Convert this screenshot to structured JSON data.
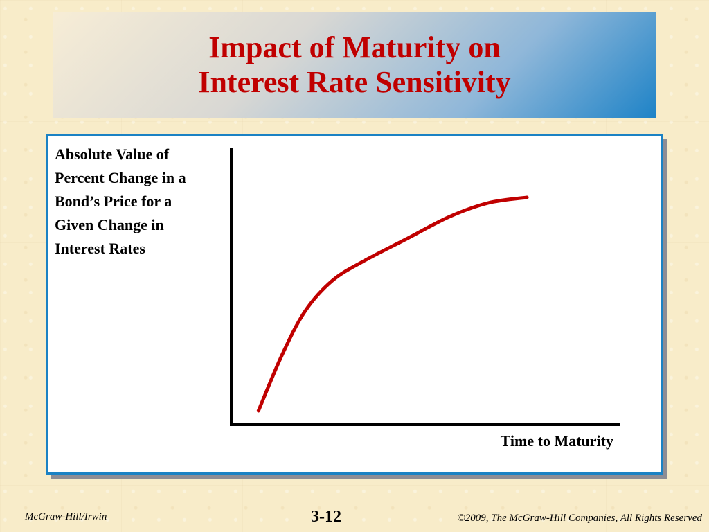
{
  "slide": {
    "title_line1": "Impact of Maturity on",
    "title_line2": "Interest Rate Sensitivity"
  },
  "footer": {
    "left": "McGraw-Hill/Irwin",
    "center": "3-12",
    "right": "©2009, The McGraw-Hill Companies, All Rights Reserved"
  },
  "colors": {
    "title": "#c00000",
    "curve": "#c00000",
    "frame_border": "#1b82c4",
    "title_gradient_end": "#1e83c7",
    "background": "#f8ecc9"
  },
  "chart_data": {
    "type": "line",
    "title": "",
    "ylabel": "Absolute Value of\nPercent Change in a\nBond’s Price for a\nGiven Change in\nInterest Rates",
    "xlabel": "Time to Maturity",
    "xlim": [
      0,
      100
    ],
    "ylim": [
      0,
      100
    ],
    "grid": false,
    "axis_ticks": false,
    "series": [
      {
        "color": "#c00000",
        "x": [
          7,
          13,
          19,
          26,
          34,
          45,
          56,
          66,
          76
        ],
        "y": [
          5,
          25,
          41,
          52,
          59,
          67,
          75,
          80,
          82
        ]
      }
    ]
  }
}
